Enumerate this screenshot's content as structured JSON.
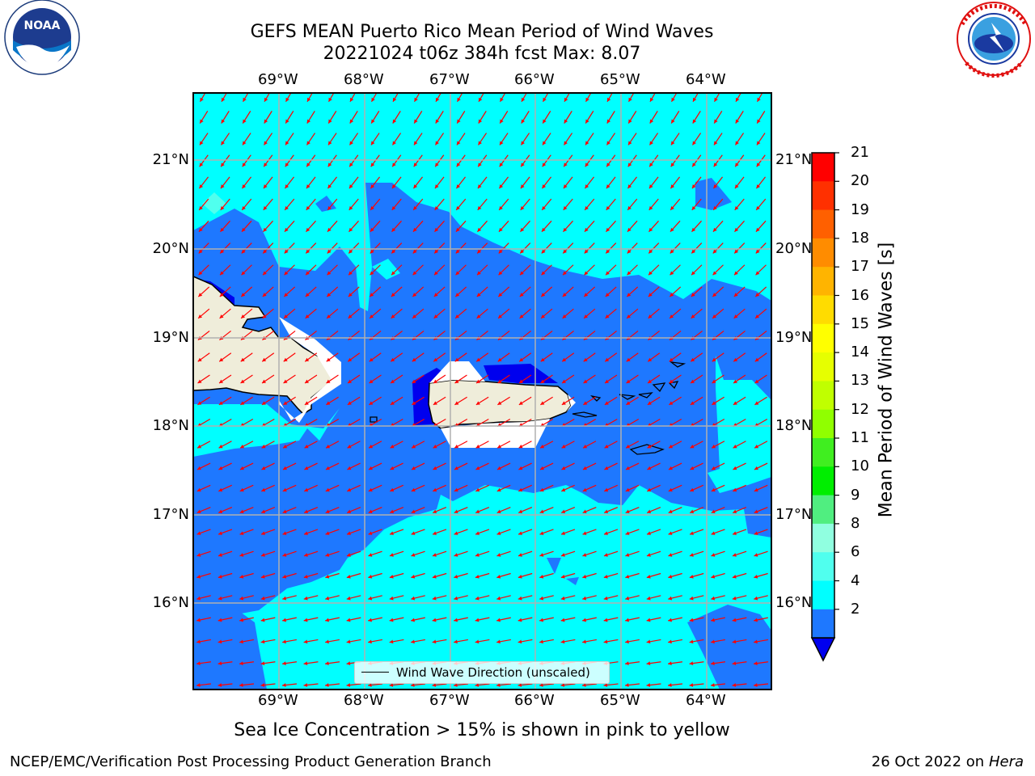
{
  "title": {
    "line1": "GEFS MEAN Puerto Rico Mean Period of Wind Waves",
    "line2": "20221024 t06z 384h fcst   Max: 8.07"
  },
  "logos": {
    "left": {
      "text": "NOAA",
      "icon": "noaa-logo-icon"
    },
    "right": {
      "icon": "nws-logo-icon"
    }
  },
  "axes": {
    "lon_ticks": [
      "69°W",
      "68°W",
      "67°W",
      "66°W",
      "65°W",
      "64°W"
    ],
    "lat_ticks": [
      "21°N",
      "20°N",
      "19°N",
      "18°N",
      "17°N",
      "16°N"
    ]
  },
  "colorbar": {
    "label": "Mean Period of Wind Waves [s]",
    "ticks": [
      "21",
      "20",
      "19",
      "18",
      "17",
      "16",
      "15",
      "14",
      "13",
      "12",
      "11",
      "10",
      "9",
      "8",
      "6",
      "4",
      "2"
    ],
    "colors": [
      "#ff0000",
      "#ff3000",
      "#ff6000",
      "#ff8c00",
      "#ffb400",
      "#ffdc00",
      "#ffff00",
      "#e6ff00",
      "#c0ff00",
      "#90ff00",
      "#40ee20",
      "#00ee00",
      "#50ee80",
      "#90ffe0",
      "#50ffee",
      "#00ffff",
      "#1e78ff",
      "#0000ee"
    ]
  },
  "map_colors": {
    "ocean_light": "#00ffff",
    "ocean_mid": "#1e78ff",
    "ocean_dark": "#0000ee",
    "land": "#efedda",
    "arrow": "#ff0000",
    "grid": "#b0b0b0"
  },
  "legend": {
    "label": "Wind Wave Direction (unscaled)"
  },
  "footer": {
    "note": "Sea Ice Concentration > 15% is shown in pink to yellow",
    "left": "NCEP/EMC/Verification Post Processing Product Generation Branch",
    "right_date": "26 Oct 2022 on ",
    "right_host": "Hera"
  }
}
